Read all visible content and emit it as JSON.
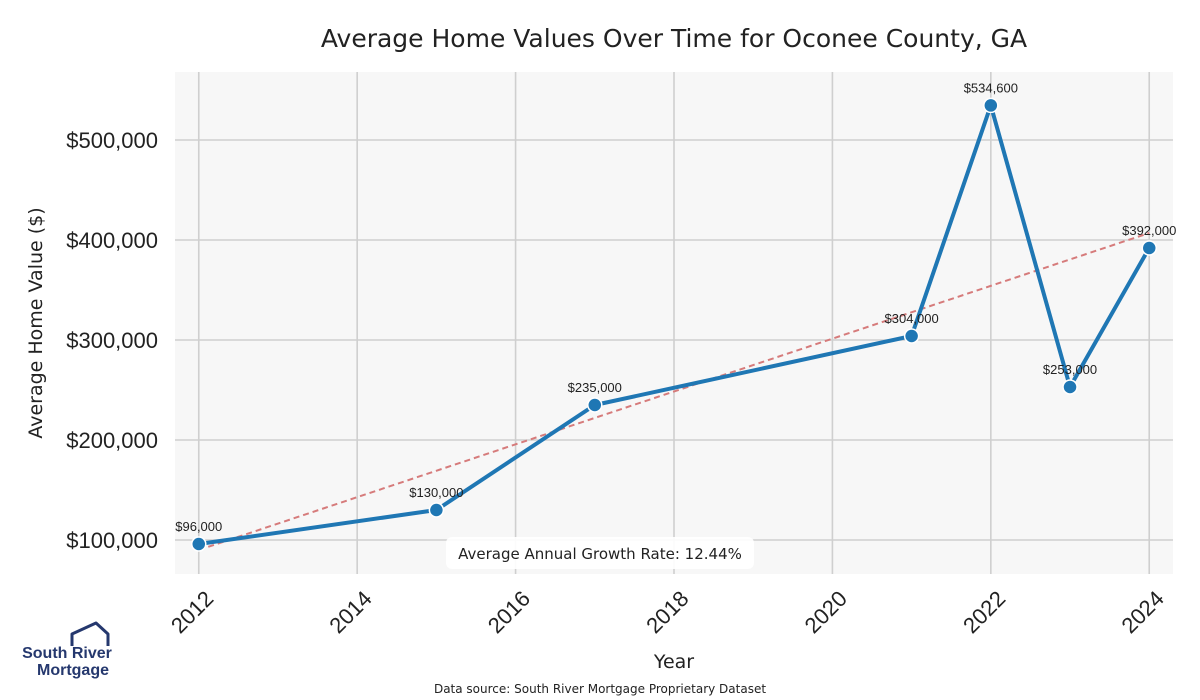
{
  "chart_data": {
    "type": "line",
    "title": "Average Home Values Over Time for Oconee County, GA",
    "xlabel": "Year",
    "ylabel": "Average Home Value ($)",
    "xlim": [
      2011.7,
      2024.3
    ],
    "ylim": [
      66000,
      568000
    ],
    "x_ticks": [
      2012,
      2014,
      2016,
      2018,
      2020,
      2022,
      2024
    ],
    "x_tick_labels": [
      "2012",
      "2014",
      "2016",
      "2018",
      "2020",
      "2022",
      "2024"
    ],
    "y_ticks": [
      100000,
      200000,
      300000,
      400000,
      500000
    ],
    "y_tick_labels": [
      "$100,000",
      "$200,000",
      "$300,000",
      "$400,000",
      "$500,000"
    ],
    "grid": true,
    "series": [
      {
        "color": "#1f77b4",
        "x": [
          2012,
          2015,
          2017,
          2021,
          2022,
          2023,
          2024
        ],
        "values": [
          96000,
          130000,
          235000,
          304000,
          534600,
          253000,
          392000
        ],
        "labels": [
          "$96,000",
          "$130,000",
          "$235,000",
          "$304,000",
          "$534,600",
          "$253,000",
          "$392,000"
        ]
      }
    ],
    "trend_line": {
      "color": "#d67b7b",
      "x": [
        2012,
        2024
      ],
      "values": [
        90000,
        407000
      ]
    },
    "annotation": "Average Annual Growth Rate: 12.44%",
    "source_note": "Data source: South River Mortgage Proprietary Dataset"
  },
  "logo": {
    "line1": "South River",
    "line2": "Mortgage",
    "color": "#25386e"
  }
}
